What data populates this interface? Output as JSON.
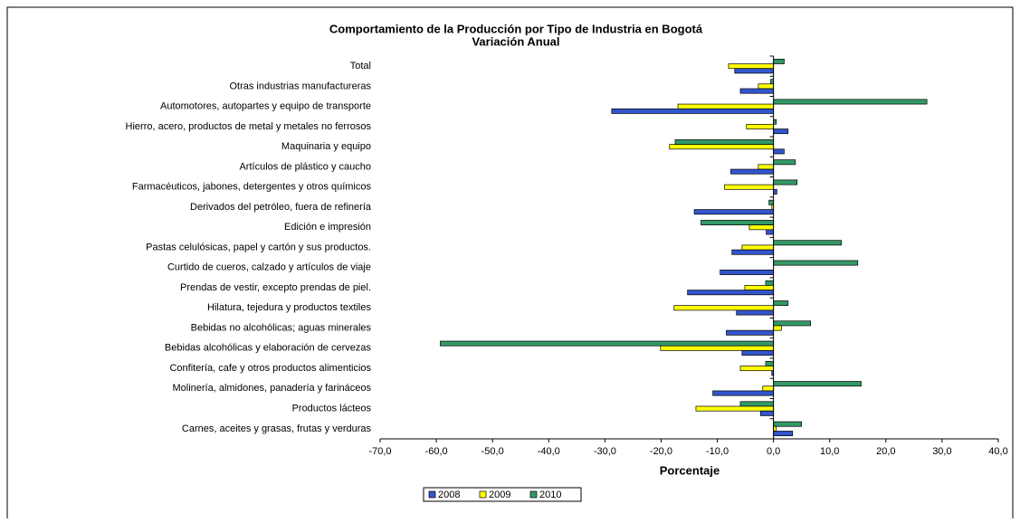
{
  "chart_data": {
    "type": "hbar",
    "title": "Comportamiento de la Producción por Tipo de Industria en Bogotá",
    "subtitle": "Variación Anual",
    "xlabel": "Porcentaje",
    "categories": [
      "Total",
      "Otras industrias manufactureras",
      "Automotores, autopartes y equipo de transporte",
      "Hierro, acero, productos de metal y metales no ferrosos",
      "Maquinaria y equipo",
      "Artículos de plástico y caucho",
      "Farmacéuticos, jabones, detergentes y otros químicos",
      "Derivados del petróleo, fuera de refinería",
      "Edición e impresión",
      "Pastas celulósicas, papel y cartón y sus productos.",
      "Curtido de cueros, calzado y artículos de viaje",
      "Prendas de vestir, excepto prendas de piel.",
      "Hilatura, tejedura y productos textiles",
      "Bebidas no alcohólicas; aguas minerales",
      "Bebidas alcohólicas y elaboración de cervezas",
      "Confitería, cafe y otros productos alimenticios",
      "Molinería, almidones, panadería y farináceos",
      "Productos lácteos",
      "Carnes, aceites y grasas, frutas y verduras"
    ],
    "series": [
      {
        "name": "2010",
        "color": "#339966",
        "values": [
          1.9,
          -0.5,
          27.3,
          0.5,
          -17.5,
          3.9,
          4.2,
          -0.8,
          -12.9,
          12.1,
          15.0,
          -1.4,
          2.6,
          6.6,
          -59.3,
          -1.4,
          15.6,
          -5.9,
          5.0
        ]
      },
      {
        "name": "2009",
        "color": "#ffff00",
        "values": [
          -8.0,
          -2.7,
          -17.0,
          -4.8,
          -18.5,
          -2.7,
          -8.7,
          -0.3,
          -4.3,
          -5.6,
          0,
          -5.1,
          -17.7,
          1.4,
          -20.1,
          -5.9,
          -1.9,
          -13.8,
          0.5
        ]
      },
      {
        "name": "2008",
        "color": "#3355cc",
        "values": [
          -6.9,
          -5.9,
          -28.8,
          2.6,
          1.9,
          -7.6,
          0.6,
          -14.1,
          -1.3,
          -7.4,
          -9.5,
          -15.3,
          -6.6,
          -8.4,
          -5.6,
          -0.3,
          -10.8,
          -2.3,
          3.4
        ]
      }
    ],
    "legend_order": [
      "2008",
      "2009",
      "2010"
    ],
    "xlim": [
      -70,
      40
    ],
    "xticks": [
      {
        "value": -70,
        "label": "-70,0"
      },
      {
        "value": -60,
        "label": "-60,0"
      },
      {
        "value": -50,
        "label": "-50,0"
      },
      {
        "value": -40,
        "label": "-40,0"
      },
      {
        "value": -30,
        "label": "-30,0"
      },
      {
        "value": -20,
        "label": "-20,0"
      },
      {
        "value": -10,
        "label": "-10,0"
      },
      {
        "value": 0,
        "label": "0,0"
      },
      {
        "value": 10,
        "label": "10,0"
      },
      {
        "value": 20,
        "label": "20,0"
      },
      {
        "value": 30,
        "label": "30,0"
      },
      {
        "value": 40,
        "label": "40,0"
      }
    ],
    "grid": false
  }
}
